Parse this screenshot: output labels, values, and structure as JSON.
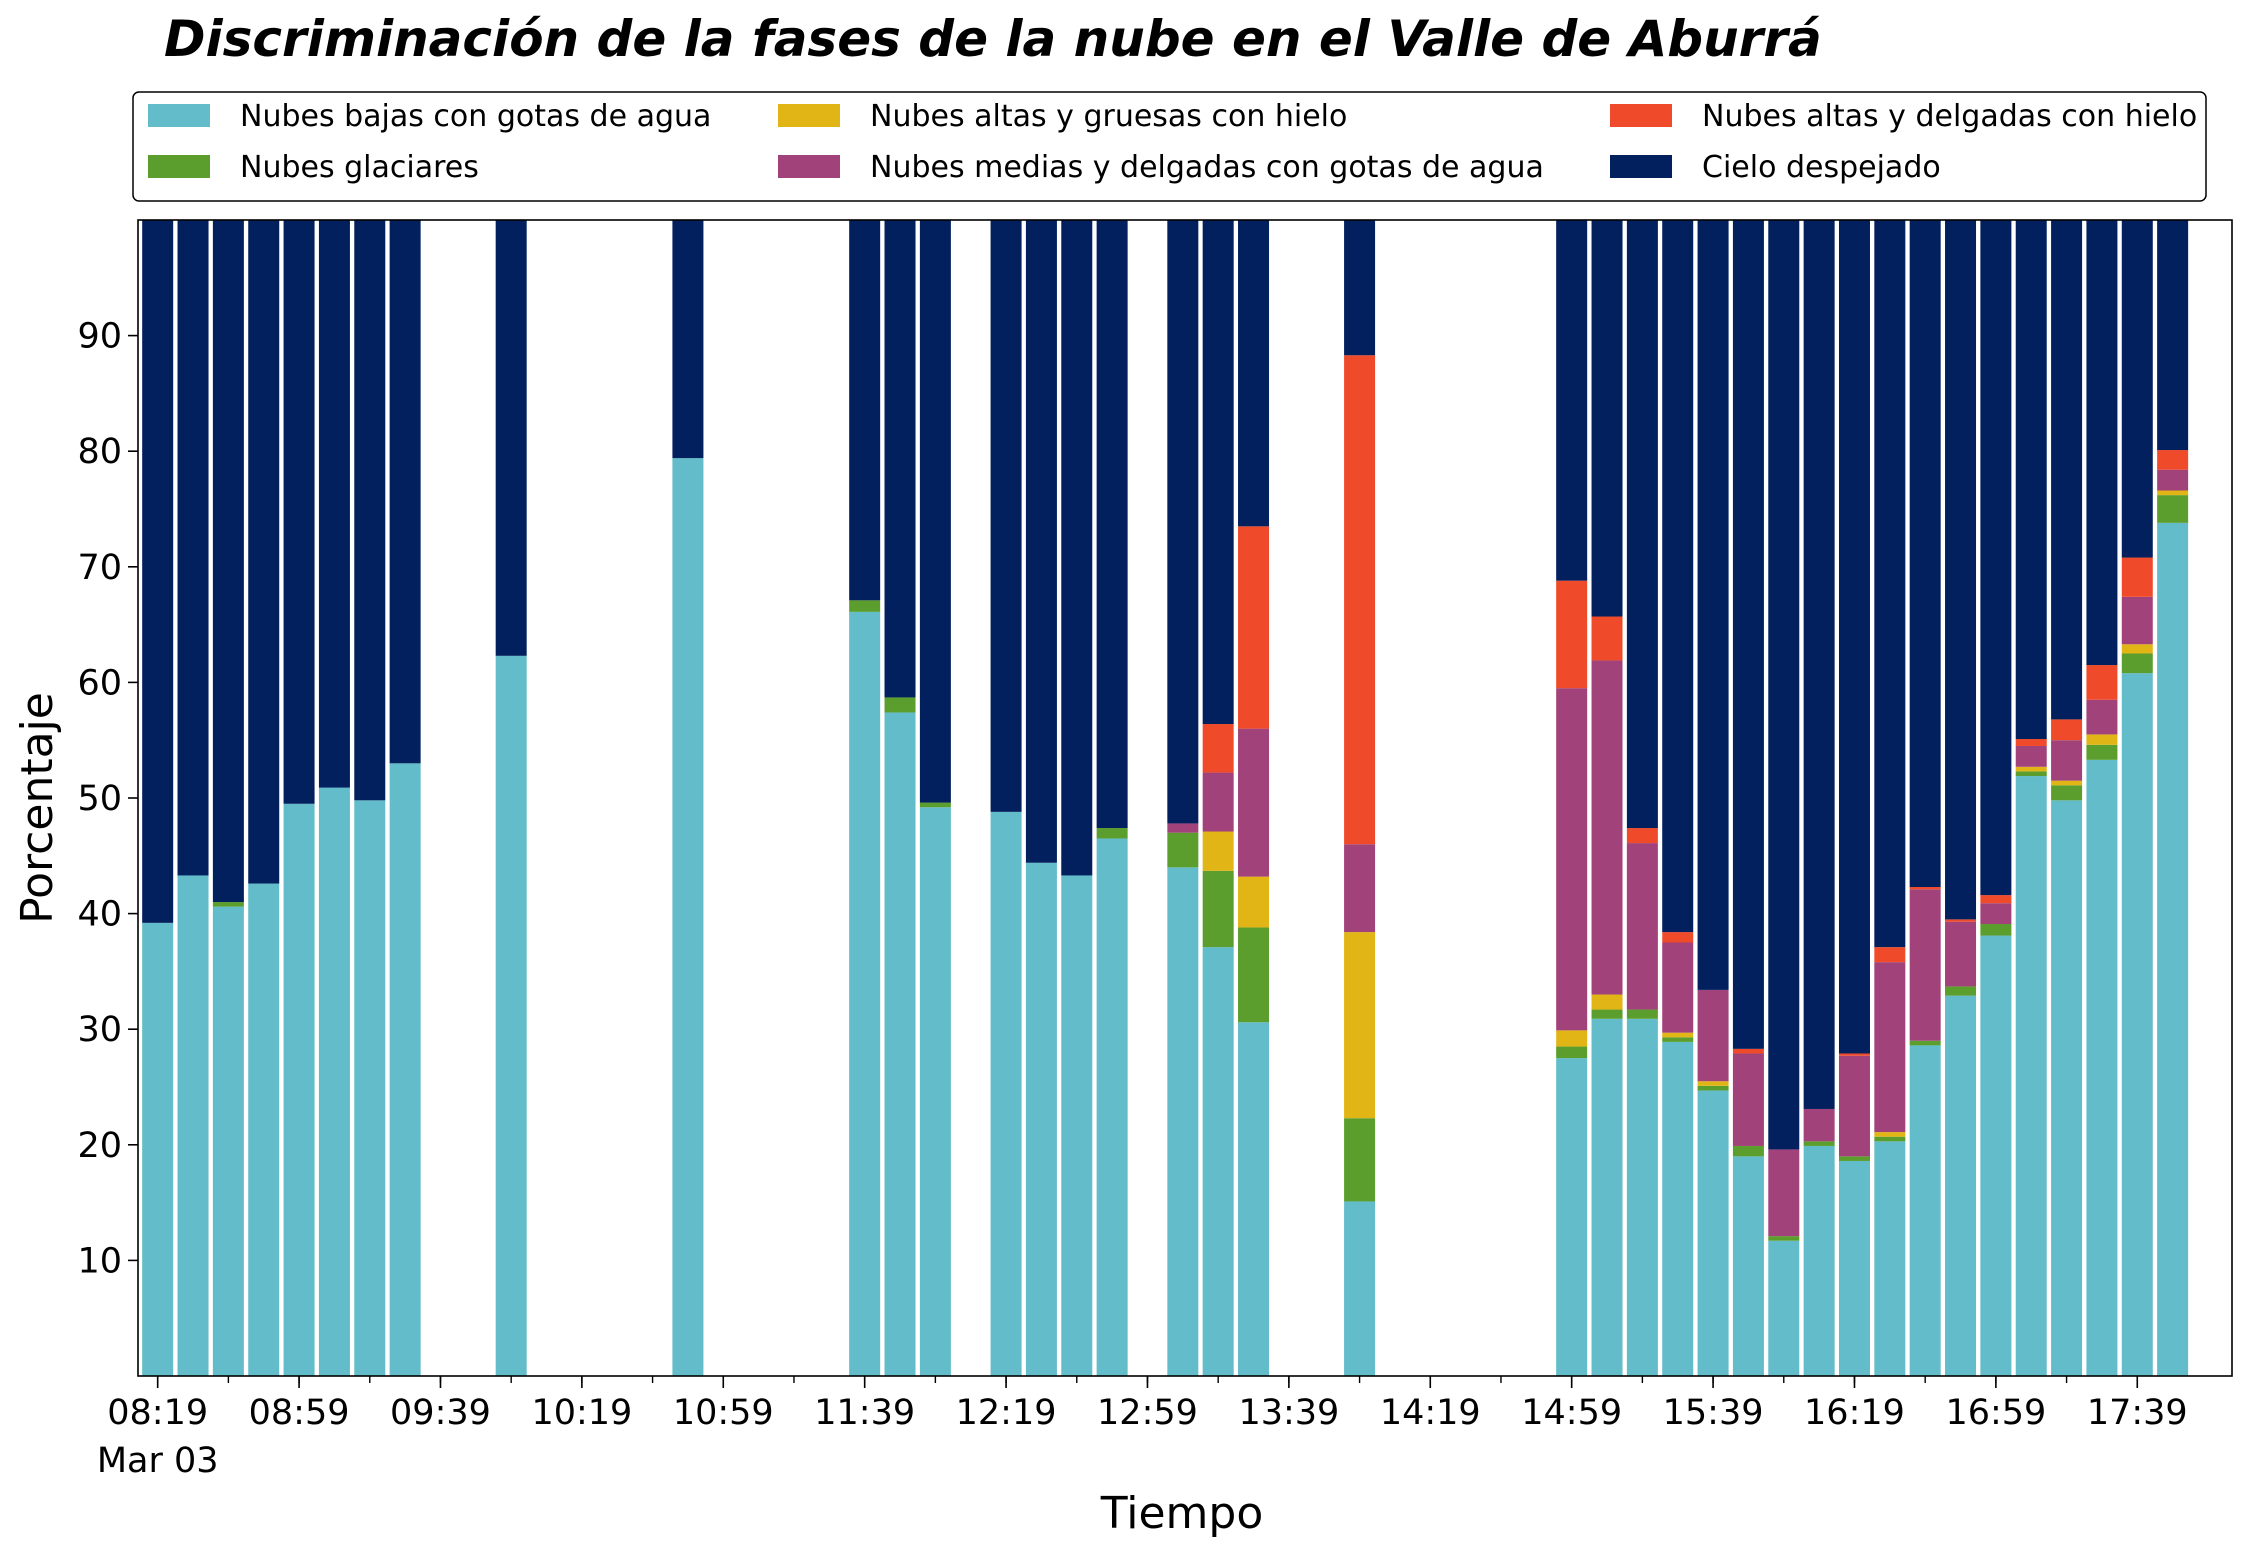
{
  "chart_data": {
    "type": "bar",
    "stacked": true,
    "title": "Discriminación de la fases de la nube en el Valle de Aburrá",
    "xlabel": "Tiempo",
    "ylabel": "Porcentaje",
    "ylim": [
      0,
      100
    ],
    "yticks": [
      10,
      20,
      30,
      40,
      50,
      60,
      70,
      80,
      90
    ],
    "x_start_minutes": 499,
    "x_end_minutes": 1070,
    "x_step_minutes": 10,
    "xticks": [
      {
        "label": "08:19",
        "sub": "Mar 03"
      },
      {
        "label": "08:59",
        "sub": ""
      },
      {
        "label": "09:39",
        "sub": ""
      },
      {
        "label": "10:19",
        "sub": ""
      },
      {
        "label": "10:59",
        "sub": ""
      },
      {
        "label": "11:39",
        "sub": ""
      },
      {
        "label": "12:19",
        "sub": ""
      },
      {
        "label": "12:59",
        "sub": ""
      },
      {
        "label": "13:39",
        "sub": ""
      },
      {
        "label": "14:19",
        "sub": ""
      },
      {
        "label": "14:59",
        "sub": ""
      },
      {
        "label": "15:39",
        "sub": ""
      },
      {
        "label": "16:19",
        "sub": ""
      },
      {
        "label": "16:59",
        "sub": ""
      },
      {
        "label": "17:39",
        "sub": ""
      }
    ],
    "legend_placement": "top, outside plot, 3 columns",
    "series": [
      {
        "name": "Nubes bajas con gotas de agua",
        "color": "#63bcc9"
      },
      {
        "name": "Nubes glaciares",
        "color": "#5c9e2e"
      },
      {
        "name": "Nubes altas y gruesas con hielo",
        "color": "#e2b517"
      },
      {
        "name": "Nubes medias y delgadas con gotas de agua",
        "color": "#a2427a"
      },
      {
        "name": "Nubes altas y delgadas con hielo",
        "color": "#ef4b2b"
      },
      {
        "name": "Cielo despejado",
        "color": "#021f5e"
      }
    ],
    "bars": [
      {
        "time": "08:19",
        "values": [
          39.2,
          0,
          0,
          0,
          0,
          60.8
        ]
      },
      {
        "time": "08:29",
        "values": [
          43.3,
          0,
          0,
          0,
          0,
          56.7
        ]
      },
      {
        "time": "08:39",
        "values": [
          40.6,
          0.4,
          0,
          0,
          0,
          59.0
        ]
      },
      {
        "time": "08:49",
        "values": [
          42.6,
          0,
          0,
          0,
          0,
          57.4
        ]
      },
      {
        "time": "08:59",
        "values": [
          49.5,
          0,
          0,
          0,
          0,
          50.5
        ]
      },
      {
        "time": "09:09",
        "values": [
          50.9,
          0,
          0,
          0,
          0,
          49.1
        ]
      },
      {
        "time": "09:19",
        "values": [
          49.8,
          0,
          0,
          0,
          0,
          50.2
        ]
      },
      {
        "time": "09:29",
        "values": [
          53.0,
          0,
          0,
          0,
          0,
          47.0
        ]
      },
      {
        "time": "09:59",
        "values": [
          62.3,
          0,
          0,
          0,
          0,
          37.7
        ]
      },
      {
        "time": "10:49",
        "values": [
          79.4,
          0,
          0,
          0,
          0,
          20.6
        ]
      },
      {
        "time": "11:39",
        "values": [
          66.1,
          1.0,
          0,
          0,
          0,
          32.9
        ]
      },
      {
        "time": "11:49",
        "values": [
          57.4,
          1.3,
          0,
          0,
          0,
          41.3
        ]
      },
      {
        "time": "11:59",
        "values": [
          49.2,
          0.4,
          0,
          0,
          0,
          50.4
        ]
      },
      {
        "time": "12:19",
        "values": [
          48.8,
          0,
          0,
          0,
          0,
          51.2
        ]
      },
      {
        "time": "12:29",
        "values": [
          44.4,
          0,
          0,
          0,
          0,
          55.6
        ]
      },
      {
        "time": "12:39",
        "values": [
          43.3,
          0,
          0,
          0,
          0,
          56.7
        ]
      },
      {
        "time": "12:49",
        "values": [
          46.5,
          0.9,
          0,
          0,
          0,
          52.6
        ]
      },
      {
        "time": "13:09",
        "values": [
          44.0,
          3.0,
          0,
          0.8,
          0,
          52.2
        ]
      },
      {
        "time": "13:19",
        "values": [
          37.1,
          6.6,
          3.4,
          5.1,
          4.2,
          43.6
        ]
      },
      {
        "time": "13:29",
        "values": [
          30.6,
          8.2,
          4.4,
          12.8,
          17.5,
          26.5
        ]
      },
      {
        "time": "13:59",
        "values": [
          15.1,
          7.2,
          16.1,
          7.6,
          42.3,
          11.7
        ]
      },
      {
        "time": "14:59",
        "values": [
          27.5,
          1.0,
          1.4,
          29.6,
          9.3,
          31.2
        ]
      },
      {
        "time": "15:09",
        "values": [
          30.9,
          0.8,
          1.3,
          28.9,
          3.8,
          34.3
        ]
      },
      {
        "time": "15:19",
        "values": [
          30.9,
          0.8,
          0,
          14.4,
          1.3,
          52.6
        ]
      },
      {
        "time": "15:29",
        "values": [
          28.9,
          0.4,
          0.4,
          7.8,
          0.9,
          61.6
        ]
      },
      {
        "time": "15:39",
        "values": [
          24.7,
          0.4,
          0.4,
          7.9,
          0,
          66.6
        ]
      },
      {
        "time": "15:49",
        "values": [
          19.0,
          0.9,
          0,
          8.0,
          0.4,
          71.7
        ]
      },
      {
        "time": "15:59",
        "values": [
          11.7,
          0.4,
          0,
          7.5,
          0,
          80.4
        ]
      },
      {
        "time": "16:09",
        "values": [
          19.9,
          0.4,
          0,
          2.8,
          0,
          76.9
        ]
      },
      {
        "time": "16:19",
        "values": [
          18.6,
          0.4,
          0,
          8.7,
          0.2,
          72.1
        ]
      },
      {
        "time": "16:29",
        "values": [
          20.3,
          0.4,
          0.4,
          14.7,
          1.3,
          62.9
        ]
      },
      {
        "time": "16:39",
        "values": [
          28.6,
          0.4,
          0,
          13.1,
          0.2,
          57.7
        ]
      },
      {
        "time": "16:49",
        "values": [
          32.9,
          0.8,
          0,
          5.6,
          0.2,
          60.5
        ]
      },
      {
        "time": "16:59",
        "values": [
          38.1,
          1.0,
          0,
          1.8,
          0.7,
          58.4
        ]
      },
      {
        "time": "17:09",
        "values": [
          51.9,
          0.4,
          0.4,
          1.8,
          0.6,
          44.9
        ]
      },
      {
        "time": "17:19",
        "values": [
          49.8,
          1.3,
          0.4,
          3.5,
          1.8,
          43.2
        ]
      },
      {
        "time": "17:29",
        "values": [
          53.3,
          1.3,
          0.9,
          3.0,
          3.0,
          38.5
        ]
      },
      {
        "time": "17:39",
        "values": [
          60.8,
          1.7,
          0.8,
          4.1,
          3.4,
          29.2
        ]
      },
      {
        "time": "17:49",
        "values": [
          73.8,
          2.4,
          0.4,
          1.8,
          1.7,
          19.9
        ]
      }
    ]
  }
}
